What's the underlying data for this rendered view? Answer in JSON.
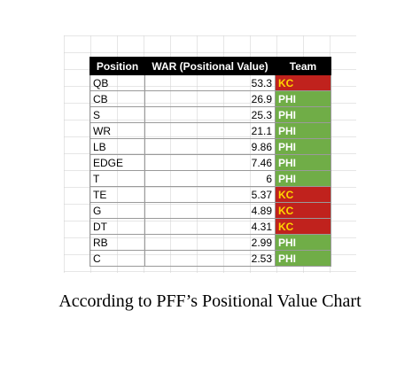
{
  "table": {
    "headers": {
      "position": "Position",
      "war": "WAR (Positional Value)",
      "team": "Team"
    },
    "rows": [
      {
        "position": "QB",
        "war": "53.3",
        "team": "KC"
      },
      {
        "position": "CB",
        "war": "26.9",
        "team": "PHI"
      },
      {
        "position": "S",
        "war": "25.3",
        "team": "PHI"
      },
      {
        "position": "WR",
        "war": "21.1",
        "team": "PHI"
      },
      {
        "position": "LB",
        "war": "9.86",
        "team": "PHI"
      },
      {
        "position": "EDGE",
        "war": "7.46",
        "team": "PHI"
      },
      {
        "position": "T",
        "war": "6",
        "team": "PHI"
      },
      {
        "position": "TE",
        "war": "5.37",
        "team": "KC"
      },
      {
        "position": "G",
        "war": "4.89",
        "team": "KC"
      },
      {
        "position": "DT",
        "war": "4.31",
        "team": "KC"
      },
      {
        "position": "RB",
        "war": "2.99",
        "team": "PHI"
      },
      {
        "position": "C",
        "war": "2.53",
        "team": "PHI"
      }
    ]
  },
  "colors": {
    "KC": {
      "background": "#c0221d",
      "text": "#ffd500"
    },
    "PHI": {
      "background": "#70ad47",
      "text": "#ffffff"
    },
    "header_background": "#000000"
  },
  "caption": "According to PFF’s Positional Value Chart"
}
